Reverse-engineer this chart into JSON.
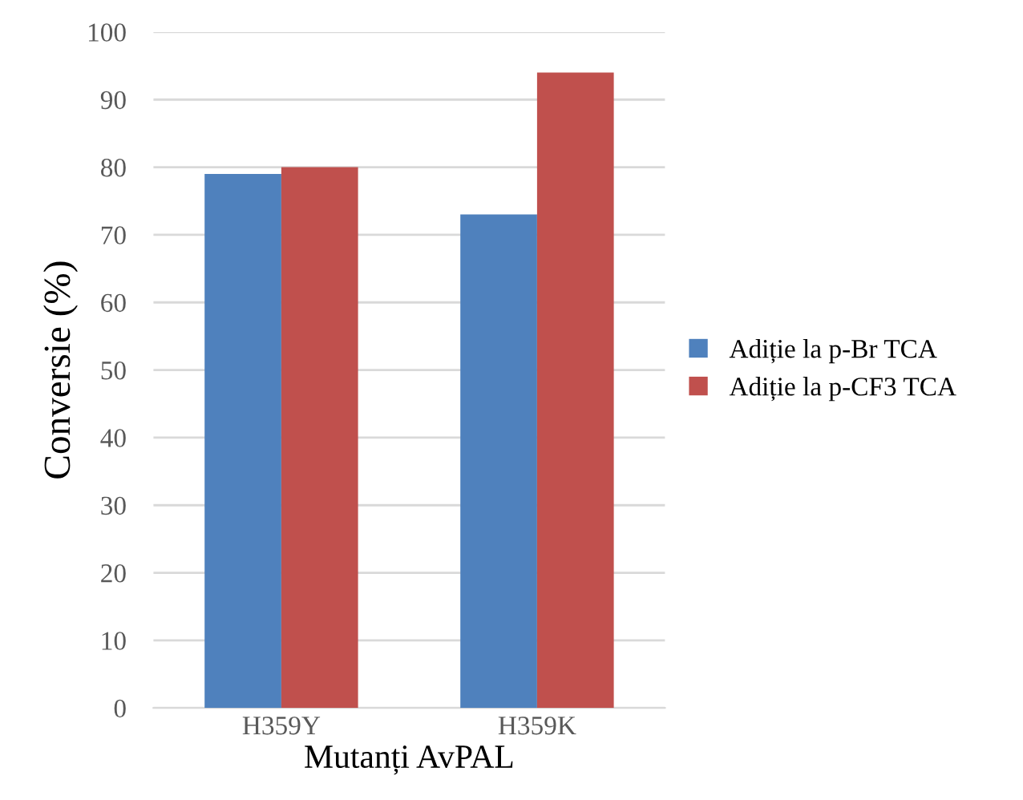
{
  "chart_data": {
    "type": "bar",
    "xlabel": "Mutanți AvPAL",
    "ylabel": "Conversie (%)",
    "categories": [
      "H359Y",
      "H359K"
    ],
    "series": [
      {
        "name": "Adiție la p-Br TCA",
        "color": "#4f81bd",
        "values": [
          79,
          73
        ]
      },
      {
        "name": "Adiție la p-CF3 TCA",
        "color": "#c0504d",
        "values": [
          80,
          94
        ]
      }
    ],
    "ylim": [
      0,
      100
    ],
    "yticks": [
      0,
      10,
      20,
      30,
      40,
      50,
      60,
      70,
      80,
      90,
      100
    ],
    "grid": "y",
    "legend": "right"
  }
}
